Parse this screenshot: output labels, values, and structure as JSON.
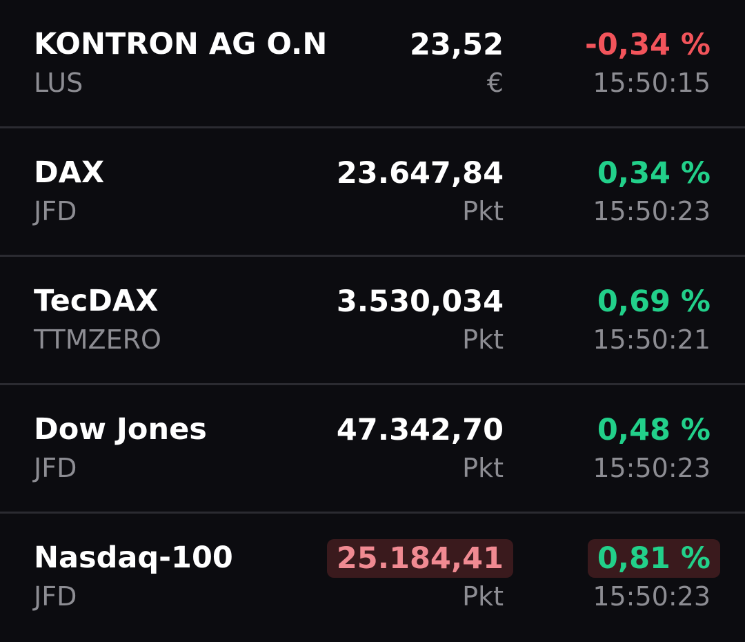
{
  "watchlist": {
    "rows": [
      {
        "name": "KONTRON AG O.N",
        "exchange": "LUS",
        "price": "23,52",
        "unit": "€",
        "change": "-0,34 %",
        "time": "15:50:15"
      },
      {
        "name": "DAX",
        "exchange": "JFD",
        "price": "23.647,84",
        "unit": "Pkt",
        "change": "0,34 %",
        "time": "15:50:23"
      },
      {
        "name": "TecDAX",
        "exchange": "TTMZERO",
        "price": "3.530,034",
        "unit": "Pkt",
        "change": "0,69 %",
        "time": "15:50:21"
      },
      {
        "name": "Dow Jones",
        "exchange": "JFD",
        "price": "47.342,70",
        "unit": "Pkt",
        "change": "0,48 %",
        "time": "15:50:23"
      },
      {
        "name": "Nasdaq-100",
        "exchange": "JFD",
        "price": "25.184,41",
        "unit": "Pkt",
        "change": "0,81 %",
        "time": "15:50:23"
      }
    ]
  },
  "colors": {
    "background": "#0c0c10",
    "positive": "#22d08a",
    "negative": "#f2545b",
    "flash_background": "#3a1a1d",
    "secondary_text": "#8d8d93"
  }
}
